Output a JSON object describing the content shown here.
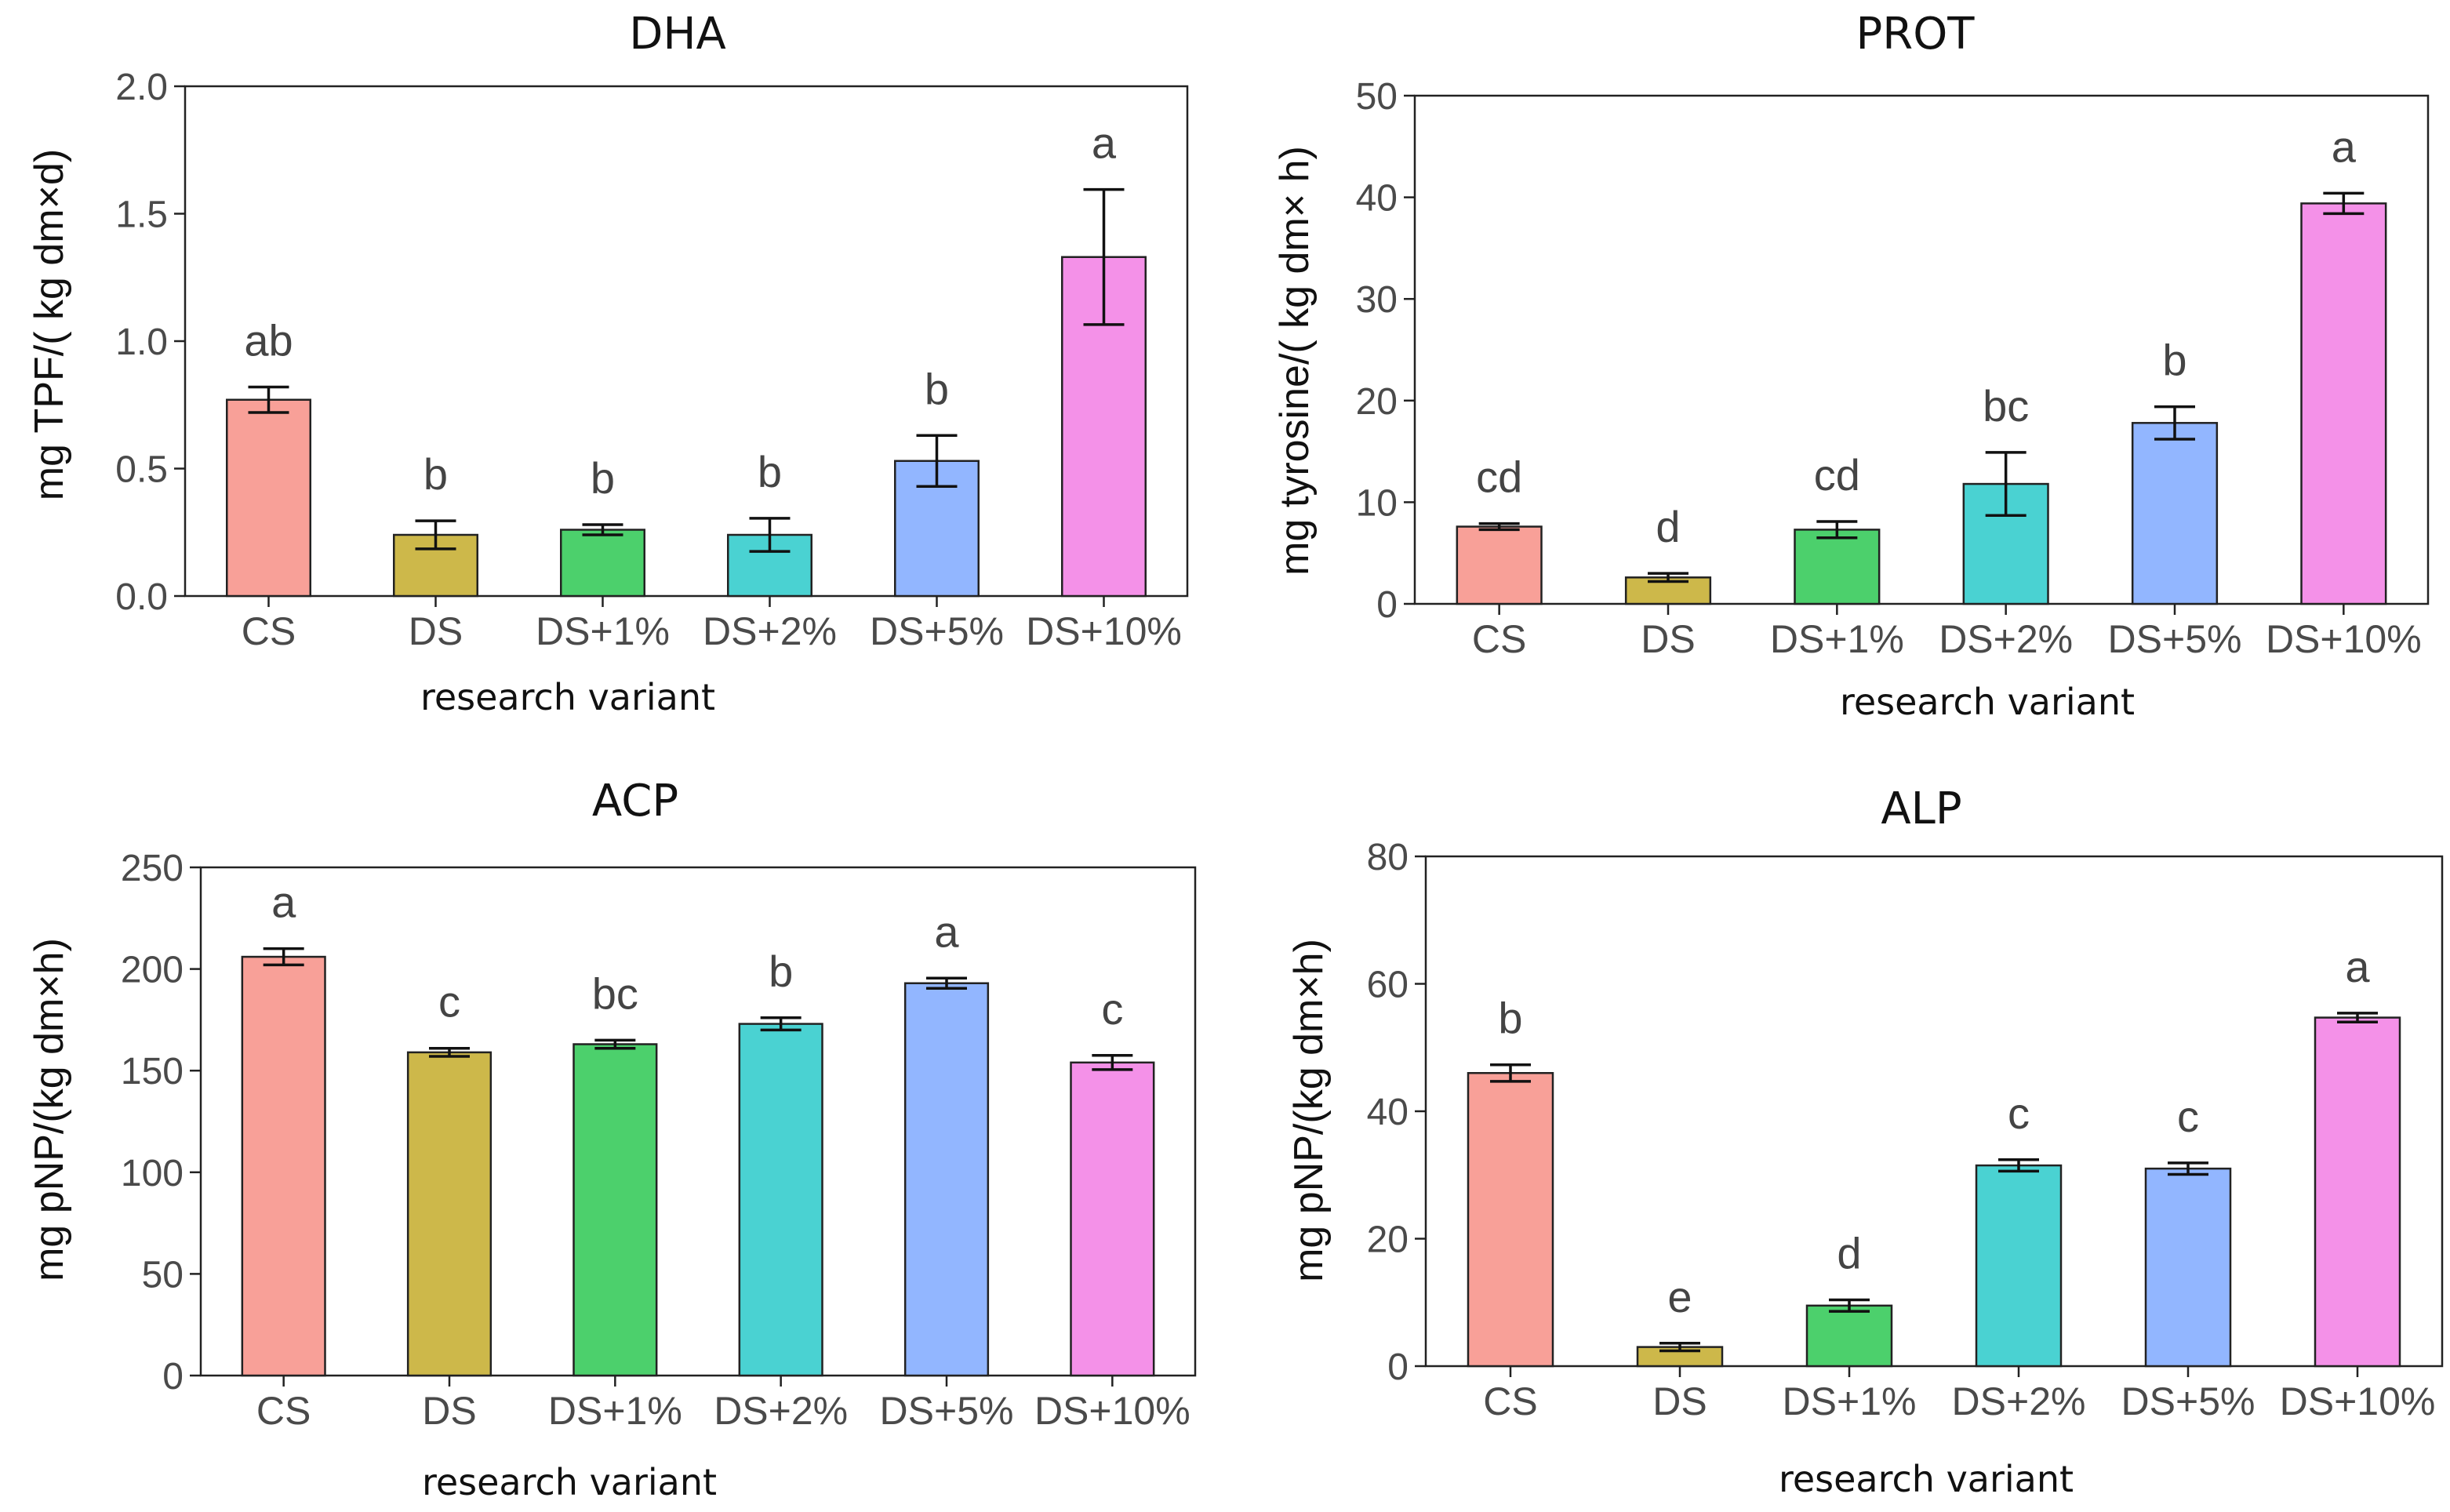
{
  "colors": {
    "CS": "#f8a098",
    "DS": "#cdb84a",
    "DS+1%": "#4cd06c",
    "DS+2%": "#4ad2d2",
    "DS+5%": "#92b6ff",
    "DS+10%": "#f491e8",
    "axis": "#222222",
    "text": "#444444"
  },
  "chart_data": [
    {
      "id": "dha",
      "type": "bar",
      "title": "DHA",
      "xlabel": "research variant",
      "ylabel": "mg TPF/( kg dm×d)",
      "ylim": [
        0,
        2.0
      ],
      "yticks": [
        "0.0",
        "0.5",
        "1.0",
        "1.5",
        "2.0"
      ],
      "ytick_values": [
        0,
        0.5,
        1.0,
        1.5,
        2.0
      ],
      "categories": [
        "CS",
        "DS",
        "DS+1%",
        "DS+2%",
        "DS+5%",
        "DS+10%"
      ],
      "values": [
        0.77,
        0.24,
        0.26,
        0.24,
        0.53,
        1.33
      ],
      "errors": [
        0.05,
        0.055,
        0.02,
        0.065,
        0.1,
        0.265
      ],
      "letters": [
        "ab",
        "b",
        "b",
        "b",
        "b",
        "a"
      ]
    },
    {
      "id": "prot",
      "type": "bar",
      "title": "PROT",
      "xlabel": "research variant",
      "ylabel": "mg tyrosine/( kg dm× h)",
      "ylim": [
        0,
        50
      ],
      "yticks": [
        "0",
        "10",
        "20",
        "30",
        "40",
        "50"
      ],
      "ytick_values": [
        0,
        10,
        20,
        30,
        40,
        50
      ],
      "categories": [
        "CS",
        "DS",
        "DS+1%",
        "DS+2%",
        "DS+5%",
        "DS+10%"
      ],
      "values": [
        7.6,
        2.6,
        7.3,
        11.8,
        17.8,
        39.4
      ],
      "errors": [
        0.3,
        0.4,
        0.8,
        3.1,
        1.6,
        1.0
      ],
      "letters": [
        "cd",
        "d",
        "cd",
        "bc",
        "b",
        "a"
      ]
    },
    {
      "id": "acp",
      "type": "bar",
      "title": "ACP",
      "xlabel": "research variant",
      "ylabel": "mg pNP/(kg dm×h)",
      "ylim": [
        0,
        250
      ],
      "yticks": [
        "0",
        "50",
        "100",
        "150",
        "200",
        "250"
      ],
      "ytick_values": [
        0,
        50,
        100,
        150,
        200,
        250
      ],
      "categories": [
        "CS",
        "DS",
        "DS+1%",
        "DS+2%",
        "DS+5%",
        "DS+10%"
      ],
      "values": [
        206,
        159,
        163,
        173,
        193,
        154
      ],
      "errors": [
        4,
        2,
        2,
        3,
        2.5,
        3.5
      ],
      "letters": [
        "a",
        "c",
        "bc",
        "b",
        "a",
        "c"
      ]
    },
    {
      "id": "alp",
      "type": "bar",
      "title": "ALP",
      "xlabel": "research variant",
      "ylabel": "mg pNP/(kg dm×h)",
      "ylim": [
        0,
        80
      ],
      "yticks": [
        "0",
        "20",
        "40",
        "60",
        "80"
      ],
      "ytick_values": [
        0,
        20,
        40,
        60,
        80
      ],
      "categories": [
        "CS",
        "DS",
        "DS+1%",
        "DS+2%",
        "DS+5%",
        "DS+10%"
      ],
      "values": [
        46,
        3,
        9.5,
        31.5,
        31,
        54.7
      ],
      "errors": [
        1.3,
        0.6,
        0.9,
        0.9,
        0.9,
        0.7
      ],
      "letters": [
        "b",
        "e",
        "d",
        "c",
        "c",
        "a"
      ]
    }
  ]
}
